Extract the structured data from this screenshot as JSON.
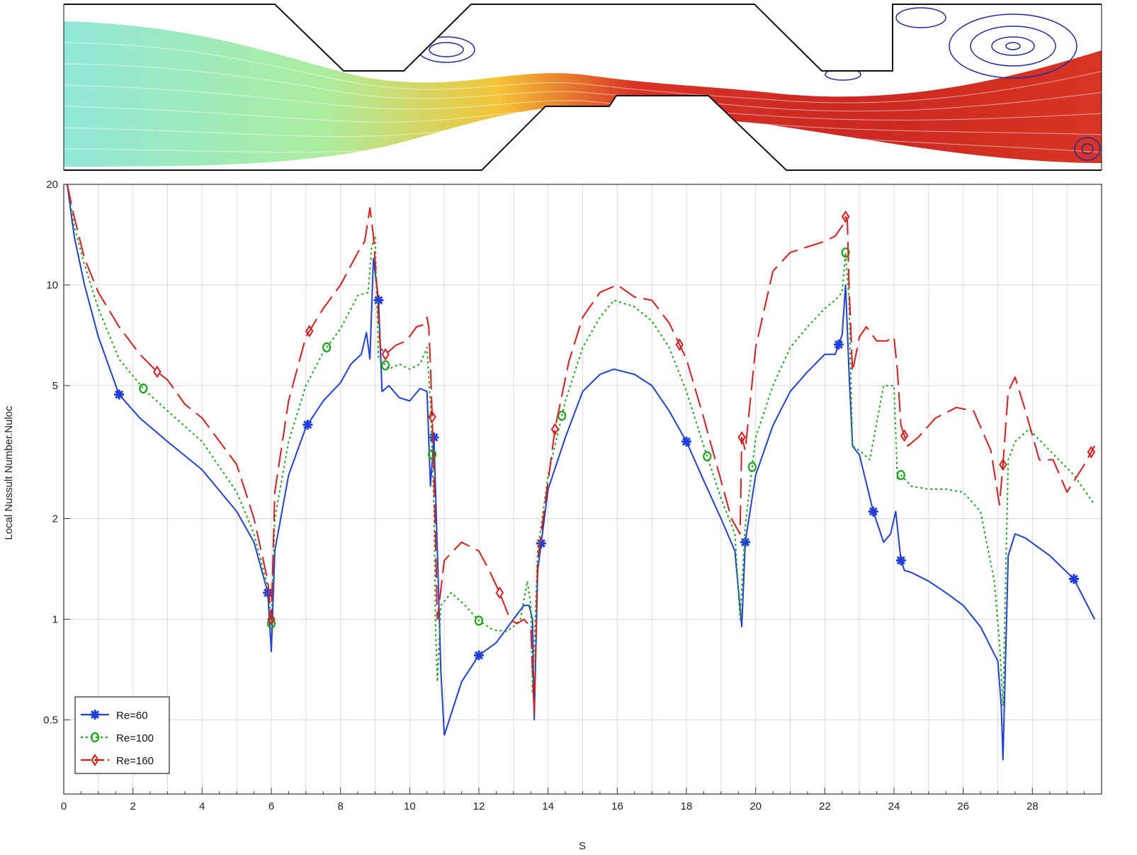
{
  "chart_data": {
    "type": "line",
    "xlabel": "S",
    "ylabel": "Local Nussult Number.Nuloc",
    "xscale": "linear",
    "yscale": "log",
    "xlim": [
      0,
      30
    ],
    "ylim": [
      0.3,
      20
    ],
    "grid": true,
    "legend_position": "bottom-left",
    "x_ticks": [
      0,
      2,
      4,
      6,
      8,
      10,
      12,
      14,
      16,
      18,
      20,
      22,
      24,
      26,
      28
    ],
    "x_tick_labels": [
      "0",
      "2",
      "4",
      "6",
      "8",
      "10",
      "12",
      "14",
      "16",
      "18",
      "20",
      "22",
      "24",
      "26",
      "28"
    ],
    "y_ticks": [
      0.5,
      1,
      2,
      5,
      10,
      20
    ],
    "y_tick_labels": [
      "0.5",
      "1",
      "2",
      "5",
      "10",
      "20"
    ],
    "series": [
      {
        "name": "Re=60",
        "color": "#1f3fe0",
        "dash": "",
        "marker": "asterisk",
        "x": [
          0.1,
          0.3,
          0.6,
          1.0,
          1.6,
          2.2,
          3.0,
          4.0,
          5.0,
          5.5,
          5.9,
          6.0,
          6.1,
          6.5,
          7.0,
          7.5,
          8.0,
          8.3,
          8.6,
          8.75,
          8.85,
          8.95,
          9.1,
          9.2,
          9.4,
          9.7,
          10.0,
          10.3,
          10.5,
          10.6,
          10.7,
          10.8,
          10.9,
          11.0,
          11.5,
          12.0,
          12.5,
          13.0,
          13.3,
          13.45,
          13.55,
          13.6,
          13.7,
          14.0,
          14.5,
          15.0,
          15.5,
          15.9,
          16.5,
          17.0,
          17.5,
          18.0,
          18.5,
          19.0,
          19.4,
          19.6,
          19.7,
          20.0,
          20.5,
          21.0,
          21.5,
          22.0,
          22.3,
          22.5,
          22.6,
          22.7,
          22.8,
          23.0,
          23.4,
          23.7,
          23.9,
          24.05,
          24.2,
          24.3,
          24.5,
          25.0,
          25.5,
          26.0,
          26.5,
          27.0,
          27.1,
          27.15,
          27.3,
          27.5,
          27.8,
          28.5,
          29.2,
          29.8
        ],
        "y": [
          20,
          14,
          10,
          7.0,
          4.7,
          4.0,
          3.4,
          2.8,
          2.1,
          1.7,
          1.2,
          0.8,
          1.6,
          2.7,
          3.75,
          4.5,
          5.1,
          5.8,
          6.2,
          7.2,
          6.0,
          12.0,
          9.0,
          4.8,
          5.0,
          4.6,
          4.5,
          4.9,
          4.8,
          2.5,
          3.5,
          1.6,
          0.7,
          0.45,
          0.65,
          0.78,
          0.85,
          1.0,
          1.1,
          1.1,
          1.0,
          0.5,
          1.4,
          2.45,
          3.5,
          4.8,
          5.4,
          5.6,
          5.4,
          5.0,
          4.2,
          3.4,
          2.6,
          2.0,
          1.6,
          0.95,
          1.7,
          2.7,
          3.8,
          4.8,
          5.5,
          6.2,
          6.2,
          7.1,
          10.0,
          5.5,
          3.3,
          3.1,
          2.1,
          1.7,
          1.8,
          2.1,
          1.5,
          1.4,
          1.38,
          1.3,
          1.2,
          1.1,
          0.95,
          0.75,
          0.55,
          0.38,
          1.55,
          1.8,
          1.75,
          1.55,
          1.32,
          1.0
        ],
        "marker_x": [
          1.6,
          5.9,
          7.05,
          9.1,
          10.7,
          12.0,
          13.8,
          18.0,
          19.7,
          22.4,
          23.4,
          24.2,
          29.2
        ]
      },
      {
        "name": "Re=100",
        "color": "#1aa51a",
        "dash": "3,4",
        "marker": "circle",
        "x": [
          0.1,
          0.3,
          0.6,
          1.0,
          1.6,
          2.3,
          3.0,
          4.0,
          5.0,
          5.5,
          5.9,
          6.0,
          6.1,
          6.5,
          7.0,
          7.5,
          8.0,
          8.5,
          8.8,
          8.9,
          9.0,
          9.1,
          9.2,
          9.4,
          9.7,
          10.0,
          10.3,
          10.5,
          10.6,
          10.7,
          10.75,
          10.8,
          10.9,
          11.2,
          11.6,
          12.0,
          12.4,
          12.8,
          13.0,
          13.2,
          13.4,
          13.5,
          13.55,
          13.7,
          14.0,
          14.5,
          15.0,
          15.5,
          15.9,
          16.5,
          17.0,
          17.5,
          18.0,
          18.5,
          19.0,
          19.4,
          19.55,
          19.7,
          20.0,
          20.5,
          21.0,
          21.5,
          22.0,
          22.3,
          22.5,
          22.6,
          22.7,
          22.8,
          23.0,
          23.3,
          23.7,
          24.0,
          24.1,
          24.2,
          24.5,
          25.0,
          25.5,
          26.0,
          26.5,
          26.9,
          27.05,
          27.15,
          27.3,
          27.5,
          27.9,
          28.5,
          29.2,
          29.8
        ],
        "y": [
          20,
          15,
          11.5,
          8.5,
          6.0,
          4.9,
          4.2,
          3.4,
          2.4,
          1.8,
          1.25,
          0.97,
          2.0,
          3.4,
          5.0,
          6.3,
          7.4,
          9.3,
          9.5,
          13.0,
          14.0,
          6.0,
          5.9,
          5.6,
          5.8,
          5.6,
          5.8,
          6.5,
          4.4,
          2.2,
          0.9,
          0.65,
          1.1,
          1.2,
          1.1,
          0.99,
          0.93,
          0.92,
          0.95,
          1.0,
          1.3,
          1.1,
          0.6,
          1.6,
          2.7,
          4.5,
          6.5,
          8.0,
          9.0,
          8.6,
          7.8,
          6.5,
          4.8,
          3.3,
          2.3,
          1.8,
          1.0,
          1.9,
          3.5,
          5.0,
          6.5,
          7.5,
          8.5,
          9.0,
          9.5,
          12.5,
          9.0,
          3.3,
          3.2,
          3.0,
          5.0,
          5.0,
          2.6,
          2.7,
          2.5,
          2.45,
          2.45,
          2.4,
          2.1,
          1.3,
          0.85,
          0.55,
          3.0,
          3.4,
          3.7,
          3.2,
          2.7,
          2.2
        ],
        "marker_x": [
          2.3,
          6.0,
          7.6,
          9.3,
          10.65,
          12.0,
          14.4,
          18.6,
          19.9,
          22.6,
          24.2
        ]
      },
      {
        "name": "Re=160",
        "color": "#dd1a1a",
        "dash": "28,10",
        "marker": "diamond",
        "x": [
          0.1,
          0.3,
          0.6,
          1.0,
          1.6,
          2.2,
          2.7,
          3.0,
          3.5,
          4.0,
          5.0,
          5.5,
          5.9,
          6.0,
          6.1,
          6.5,
          7.0,
          7.5,
          8.0,
          8.5,
          8.7,
          8.85,
          8.95,
          9.05,
          9.15,
          9.3,
          9.6,
          9.9,
          10.2,
          10.4,
          10.5,
          10.55,
          10.6,
          10.7,
          10.8,
          11.0,
          11.5,
          12.0,
          12.3,
          12.6,
          12.9,
          13.1,
          13.3,
          13.5,
          13.6,
          13.7,
          14.2,
          14.6,
          15.0,
          15.5,
          16.0,
          16.5,
          17.0,
          17.5,
          18.0,
          18.5,
          19.0,
          19.3,
          19.55,
          19.6,
          19.7,
          20.0,
          20.5,
          21.0,
          21.5,
          22.0,
          22.3,
          22.5,
          22.6,
          22.65,
          22.7,
          22.8,
          23.0,
          23.2,
          23.5,
          23.8,
          24.0,
          24.1,
          24.2,
          24.4,
          24.7,
          25.2,
          25.8,
          26.3,
          26.8,
          27.05,
          27.15,
          27.3,
          27.5,
          27.8,
          28.2,
          28.6,
          29.0,
          29.5,
          29.8
        ],
        "y": [
          20,
          16,
          12,
          9.5,
          7.5,
          6.2,
          5.5,
          5.2,
          4.4,
          4.0,
          2.9,
          2.0,
          1.3,
          1.0,
          2.4,
          4.5,
          7.0,
          8.5,
          10.0,
          12.5,
          13.5,
          17.0,
          14.0,
          10.0,
          6.5,
          6.2,
          6.6,
          6.8,
          7.5,
          7.6,
          8.0,
          7.5,
          5.8,
          2.8,
          1.0,
          1.5,
          1.7,
          1.6,
          1.4,
          1.2,
          1.0,
          0.97,
          1.0,
          0.95,
          0.52,
          1.5,
          3.7,
          5.9,
          8.0,
          9.5,
          10.0,
          9.2,
          9.0,
          7.7,
          6.0,
          4.0,
          2.6,
          2.0,
          1.8,
          3.5,
          3.2,
          6.5,
          11.0,
          12.5,
          13.0,
          13.5,
          14.0,
          15.0,
          16.0,
          15.5,
          10.0,
          5.5,
          7.0,
          7.5,
          6.8,
          6.8,
          7.0,
          5.5,
          3.8,
          3.3,
          3.5,
          4.0,
          4.3,
          4.2,
          3.2,
          2.2,
          2.9,
          4.8,
          5.3,
          4.2,
          3.0,
          3.0,
          2.4,
          2.9,
          3.3
        ],
        "marker_x": [
          2.7,
          6.0,
          7.1,
          9.3,
          10.65,
          12.6,
          14.2,
          17.8,
          19.6,
          22.6,
          24.3,
          27.15,
          29.7
        ]
      }
    ]
  }
}
